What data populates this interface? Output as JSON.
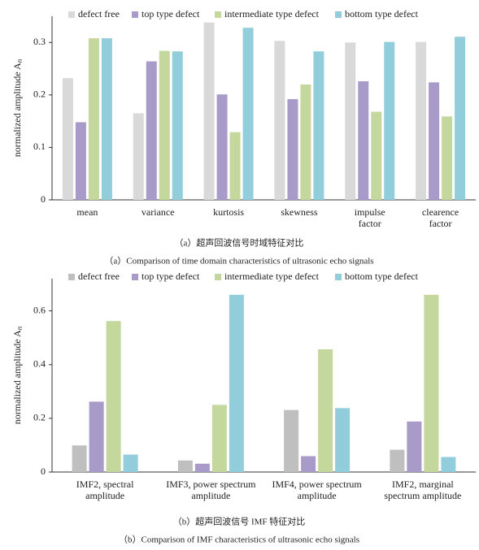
{
  "chart_data": [
    {
      "type": "bar",
      "y_label": "normalized amplitude A",
      "y_label_sub": "n",
      "categories": [
        "mean",
        "variance",
        "kurtosis",
        "skewness",
        "impulse\nfactor",
        "clearence\nfactor"
      ],
      "series": [
        {
          "name": "defect free",
          "color": "#d9d9d9",
          "values": [
            0.232,
            0.165,
            0.338,
            0.303,
            0.3,
            0.301
          ]
        },
        {
          "name": "top type defect",
          "color": "#a99bc9",
          "values": [
            0.148,
            0.264,
            0.201,
            0.192,
            0.226,
            0.224
          ]
        },
        {
          "name": "intermediate type defect",
          "color": "#c4d89e",
          "values": [
            0.308,
            0.284,
            0.129,
            0.22,
            0.168,
            0.159
          ]
        },
        {
          "name": "bottom type defect",
          "color": "#92cddc",
          "values": [
            0.308,
            0.283,
            0.328,
            0.283,
            0.301,
            0.311
          ]
        }
      ],
      "ylim": [
        0,
        0.35
      ],
      "yticks": [
        0,
        0.1,
        0.2,
        0.3
      ],
      "caption_cn": "（a）超声回波信号时域特征对比",
      "caption_en": "（a）Comparison of time domain characteristics of ultrasonic echo signals"
    },
    {
      "type": "bar",
      "y_label": "normalized amplitude A",
      "y_label_sub": "n",
      "categories": [
        "IMF2, spectral\namplitude",
        "IMF3, power spectrum\namplitude",
        "IMF4, power spectrum\namplitude",
        "IMF2, marginal\nspectrum amplitude"
      ],
      "series": [
        {
          "name": "defect free",
          "color": "#bfbfbf",
          "values": [
            0.099,
            0.043,
            0.231,
            0.083
          ]
        },
        {
          "name": "top type defect",
          "color": "#a99bc9",
          "values": [
            0.262,
            0.031,
            0.059,
            0.188
          ]
        },
        {
          "name": "intermediate type defect",
          "color": "#c4d89e",
          "values": [
            0.562,
            0.25,
            0.457,
            0.66
          ]
        },
        {
          "name": "bottom type defect",
          "color": "#92cddc",
          "values": [
            0.065,
            0.66,
            0.238,
            0.056
          ]
        }
      ],
      "ylim": [
        0,
        0.72
      ],
      "yticks": [
        0,
        0.2,
        0.4,
        0.6
      ],
      "caption_cn": "（b）超声回波信号 IMF 特征对比",
      "caption_en": "（b）Comparison of IMF characteristics of ultrasonic echo signals"
    }
  ]
}
